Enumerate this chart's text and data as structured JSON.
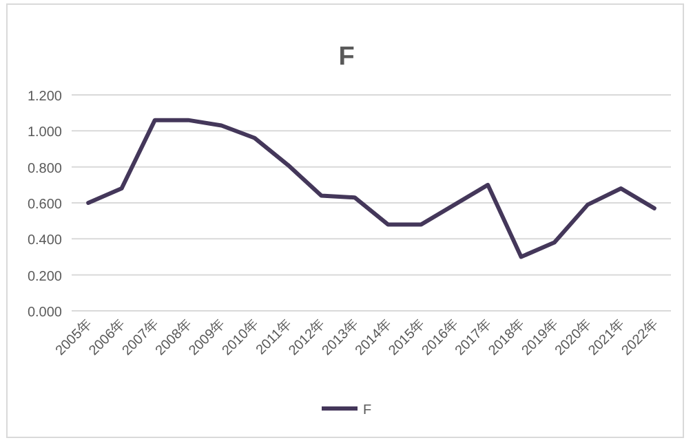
{
  "chart_data": {
    "type": "line",
    "title": "F",
    "categories": [
      "2005年",
      "2006年",
      "2007年",
      "2008年",
      "2009年",
      "2010年",
      "2011年",
      "2012年",
      "2013年",
      "2014年",
      "2015年",
      "2016年",
      "2017年",
      "2018年",
      "2019年",
      "2020年",
      "2021年",
      "2022年"
    ],
    "series": [
      {
        "name": "F",
        "color": "#44375a",
        "values": [
          0.6,
          0.68,
          1.06,
          1.06,
          1.03,
          0.96,
          0.81,
          0.64,
          0.63,
          0.48,
          0.48,
          0.59,
          0.7,
          0.3,
          0.38,
          0.59,
          0.68,
          0.57
        ]
      }
    ],
    "ylim": [
      0,
      1.2
    ],
    "yticks": [
      {
        "value": 0,
        "label": "0.000"
      },
      {
        "value": 0.2,
        "label": "0.200"
      },
      {
        "value": 0.4,
        "label": "0.400"
      },
      {
        "value": 0.6,
        "label": "0.600"
      },
      {
        "value": 0.8,
        "label": "0.800"
      },
      {
        "value": 1.0,
        "label": "1.000"
      },
      {
        "value": 1.2,
        "label": "1.200"
      }
    ],
    "grid": "y",
    "legend": "bottom",
    "marker": "none",
    "line_style": "solid"
  }
}
